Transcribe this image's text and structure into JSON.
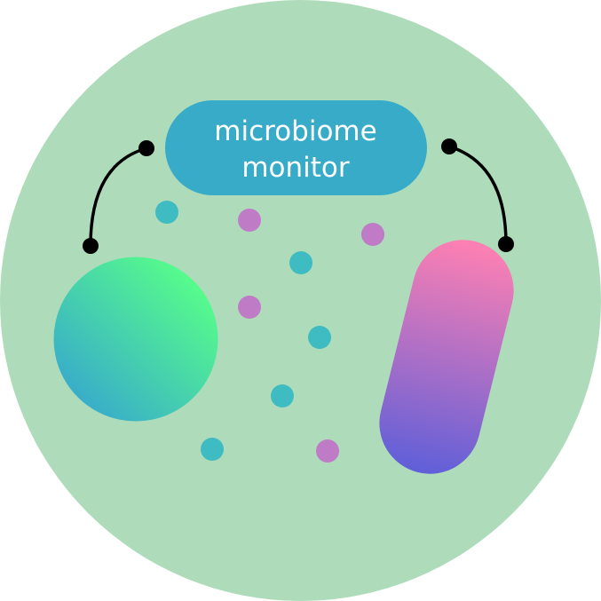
{
  "logo": {
    "label_line_1": "microbiome",
    "label_line_2": "monitor"
  },
  "colors": {
    "background_disc": "#aedcba",
    "label_pill": "#37abc8",
    "label_text": "#ffffff",
    "connector": "#000000",
    "dot_teal": "#3fbcc2",
    "dot_purple": "#c07bc6",
    "coccus_gradient": [
      "#39aec9",
      "#56fb8c"
    ],
    "bacillus_gradient": [
      "#ff80b2",
      "#5f5fd9"
    ]
  },
  "icons": [
    "background-disc",
    "label-pill",
    "connector-left",
    "connector-right",
    "coccus-cell",
    "bacillus-cell",
    "particle-dot"
  ]
}
